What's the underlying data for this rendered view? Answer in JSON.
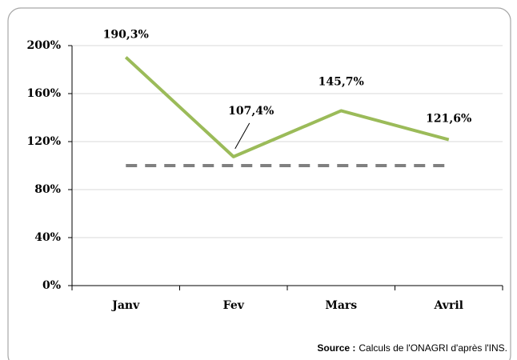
{
  "chart_data": {
    "type": "line",
    "categories": [
      "Janv",
      "Fev",
      "Mars",
      "Avril"
    ],
    "series": [
      {
        "color": "#9bbb59",
        "values": [
          190.3,
          107.4,
          145.7,
          121.6
        ],
        "value_labels": [
          "190,3%",
          "107,4%",
          "145,7%",
          "121,6%"
        ]
      },
      {
        "color": "#808080",
        "dashed": true,
        "values": [
          100,
          100,
          100,
          100
        ]
      }
    ],
    "ylim": [
      0,
      200
    ],
    "yticks": [
      {
        "value": 0,
        "label": "0%"
      },
      {
        "value": 40,
        "label": "40%"
      },
      {
        "value": 80,
        "label": "80%"
      },
      {
        "value": 120,
        "label": "120%"
      },
      {
        "value": 160,
        "label": "160%"
      },
      {
        "value": 200,
        "label": "200%"
      }
    ],
    "grid": true,
    "source": {
      "label": "Source :",
      "text": "Calculs de l'ONAGRI d'après l'INS."
    }
  }
}
